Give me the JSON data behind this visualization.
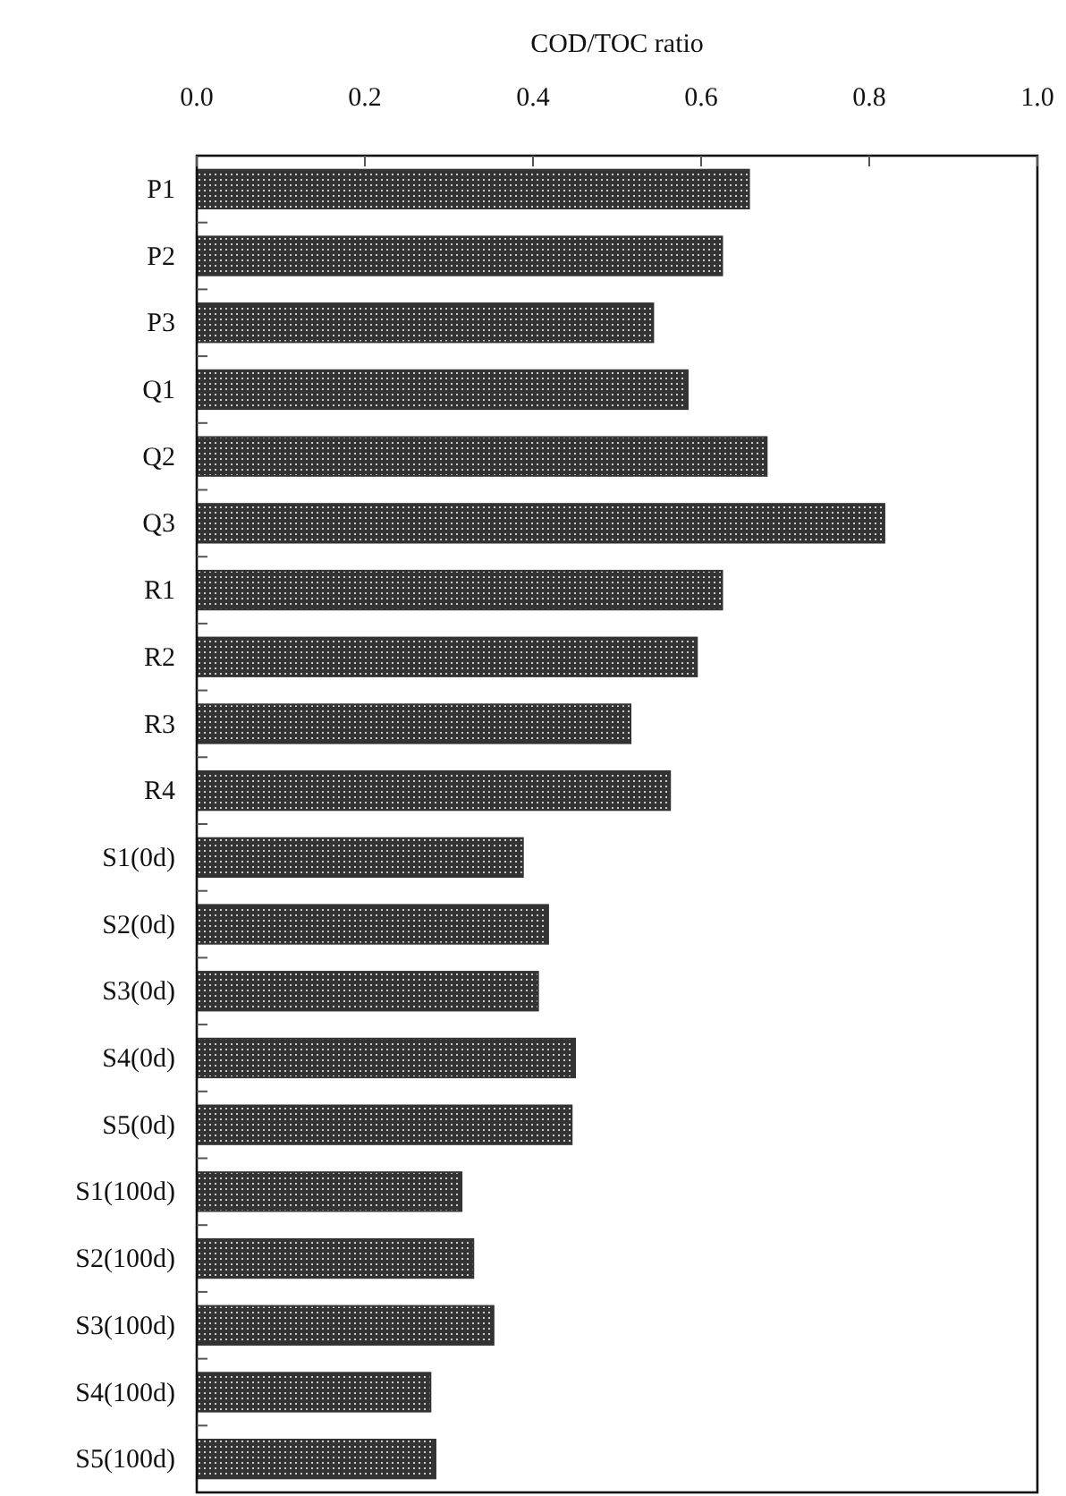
{
  "chart_data": {
    "type": "bar",
    "orientation": "horizontal",
    "xlabel": "COD/TOC ratio",
    "categories": [
      "P1",
      "P2",
      "P3",
      "Q1",
      "Q2",
      "Q3",
      "R1",
      "R2",
      "R3",
      "R4",
      "S1(0d)",
      "S2(0d)",
      "S3(0d)",
      "S4(0d)",
      "S5(0d)",
      "S1(100d)",
      "S2(100d)",
      "S3(100d)",
      "S4(100d)",
      "S5(100d)"
    ],
    "values": [
      0.657,
      0.625,
      0.543,
      0.584,
      0.678,
      0.818,
      0.625,
      0.595,
      0.516,
      0.563,
      0.388,
      0.418,
      0.406,
      0.45,
      0.446,
      0.315,
      0.329,
      0.353,
      0.278,
      0.284
    ],
    "color": "#333333",
    "xlim": [
      0,
      1
    ],
    "xticks": [
      {
        "value": 0,
        "label": "0.0"
      },
      {
        "value": 0.2,
        "label": "0.2"
      },
      {
        "value": 0.4,
        "label": "0.4"
      },
      {
        "value": 0.6,
        "label": "0.6"
      },
      {
        "value": 0.8,
        "label": "0.8"
      },
      {
        "value": 1,
        "label": "1.0"
      }
    ],
    "grid": false
  }
}
